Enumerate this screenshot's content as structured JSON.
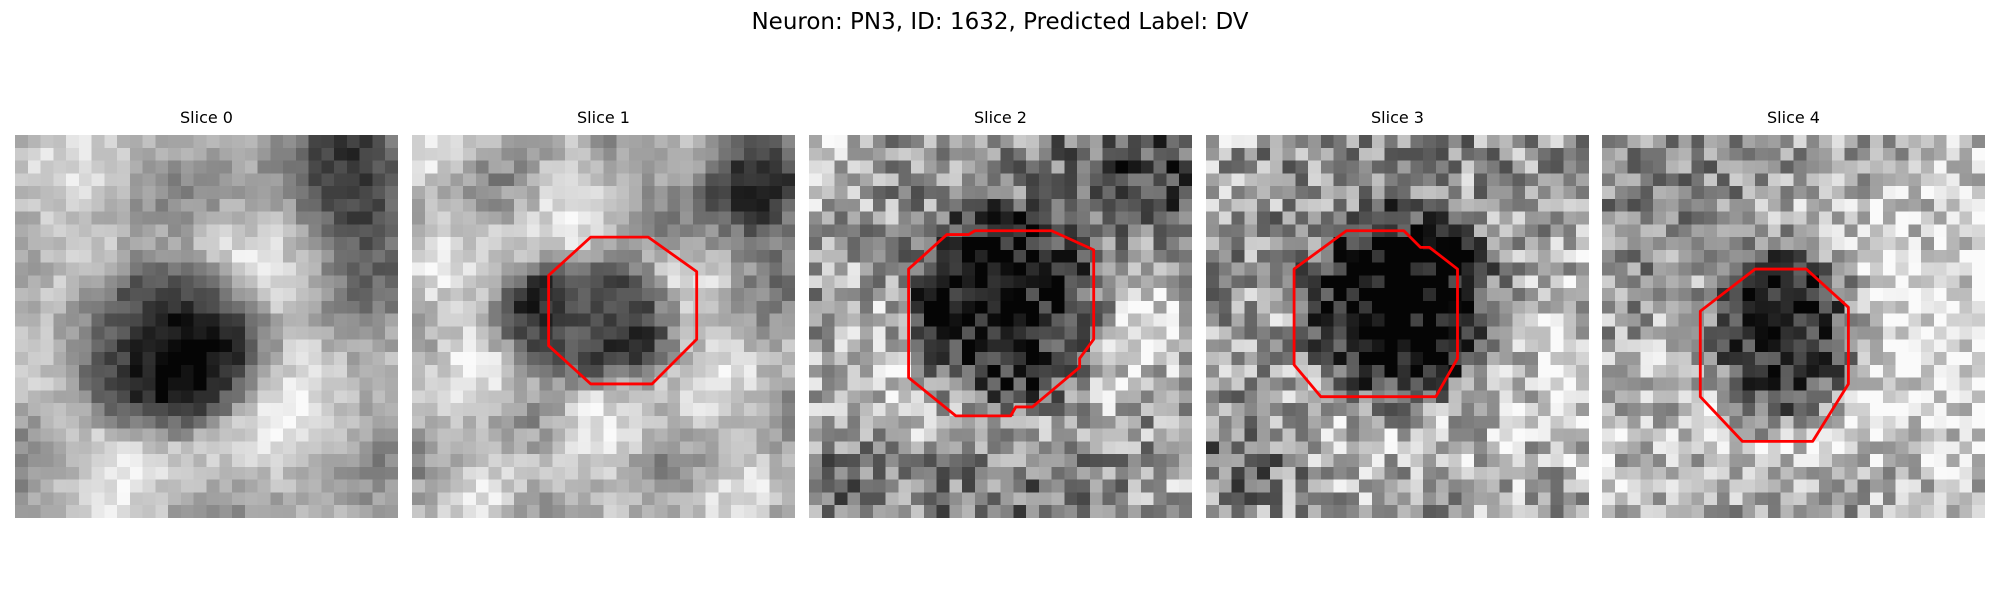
{
  "figure": {
    "title": "Neuron: PN3, ID: 1632, Predicted Label: DV"
  },
  "panels": [
    {
      "title": "Slice 0",
      "contour": false
    },
    {
      "title": "Slice 1",
      "contour": true
    },
    {
      "title": "Slice 2",
      "contour": true
    },
    {
      "title": "Slice 3",
      "contour": true
    },
    {
      "title": "Slice 4",
      "contour": true
    }
  ],
  "colors": {
    "contour": "#ff0000",
    "background": "#ffffff"
  }
}
